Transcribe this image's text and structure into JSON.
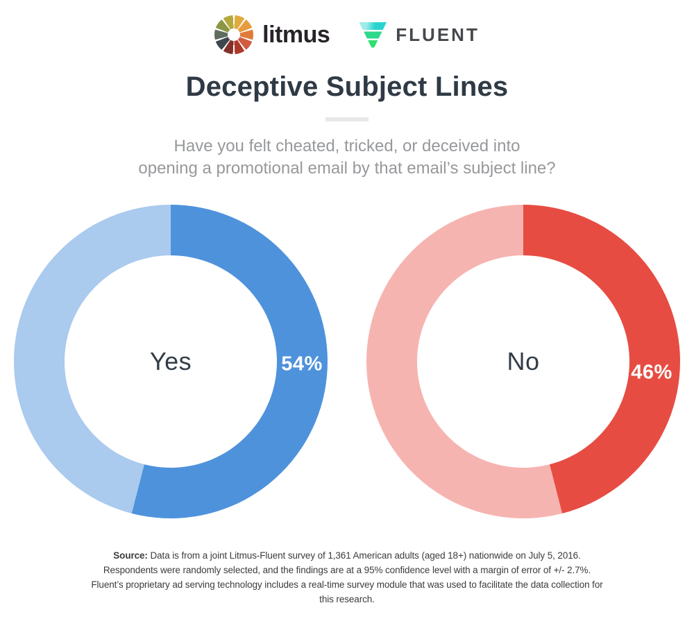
{
  "header": {
    "litmus_brand": "litmus",
    "fluent_brand": "FLUENT",
    "title": "Deceptive Subject Lines",
    "subtitle_line1": "Have you felt cheated, tricked, or deceived into",
    "subtitle_line2": "opening a promotional email by that email’s subject line?"
  },
  "chart_data": {
    "type": "pie",
    "variant": "paired-donut",
    "title": "Deceptive Subject Lines",
    "question": "Have you felt cheated, tricked, or deceived into opening a promotional email by that email’s subject line?",
    "categories": [
      "Yes",
      "No"
    ],
    "values": [
      54,
      46
    ],
    "charts": [
      {
        "label": "Yes",
        "value_pct": 54,
        "value_label": "54%",
        "color": "#4e92dc",
        "track_color": "#aacaee",
        "start_angle_deg": 0,
        "direction": "clockwise"
      },
      {
        "label": "No",
        "value_pct": 46,
        "value_label": "46%",
        "color": "#e74c42",
        "track_color": "#f6b4b0",
        "start_angle_deg": 0,
        "direction": "clockwise"
      }
    ],
    "legend_position": "none",
    "grid": false
  },
  "footer": {
    "source_label": "Source:",
    "source_text": " Data is from a joint Litmus-Fluent survey of 1,361 American adults (aged 18+) nationwide on July 5, 2016. Respondents were randomly selected, and the findings are at a 95% confidence level with a margin of error of +/- 2.7%. Fluent’s proprietary ad serving technology includes a real-time survey module that was used to facilitate the data collection for this research."
  },
  "colors": {
    "title_text": "#2f3a45",
    "subtitle_text": "#96989b",
    "yes_dark": "#4e92dc",
    "yes_light": "#aacaee",
    "no_dark": "#e74c42",
    "no_light": "#f6b4b0",
    "divider": "#e6e8ea",
    "background": "#ffffff"
  }
}
